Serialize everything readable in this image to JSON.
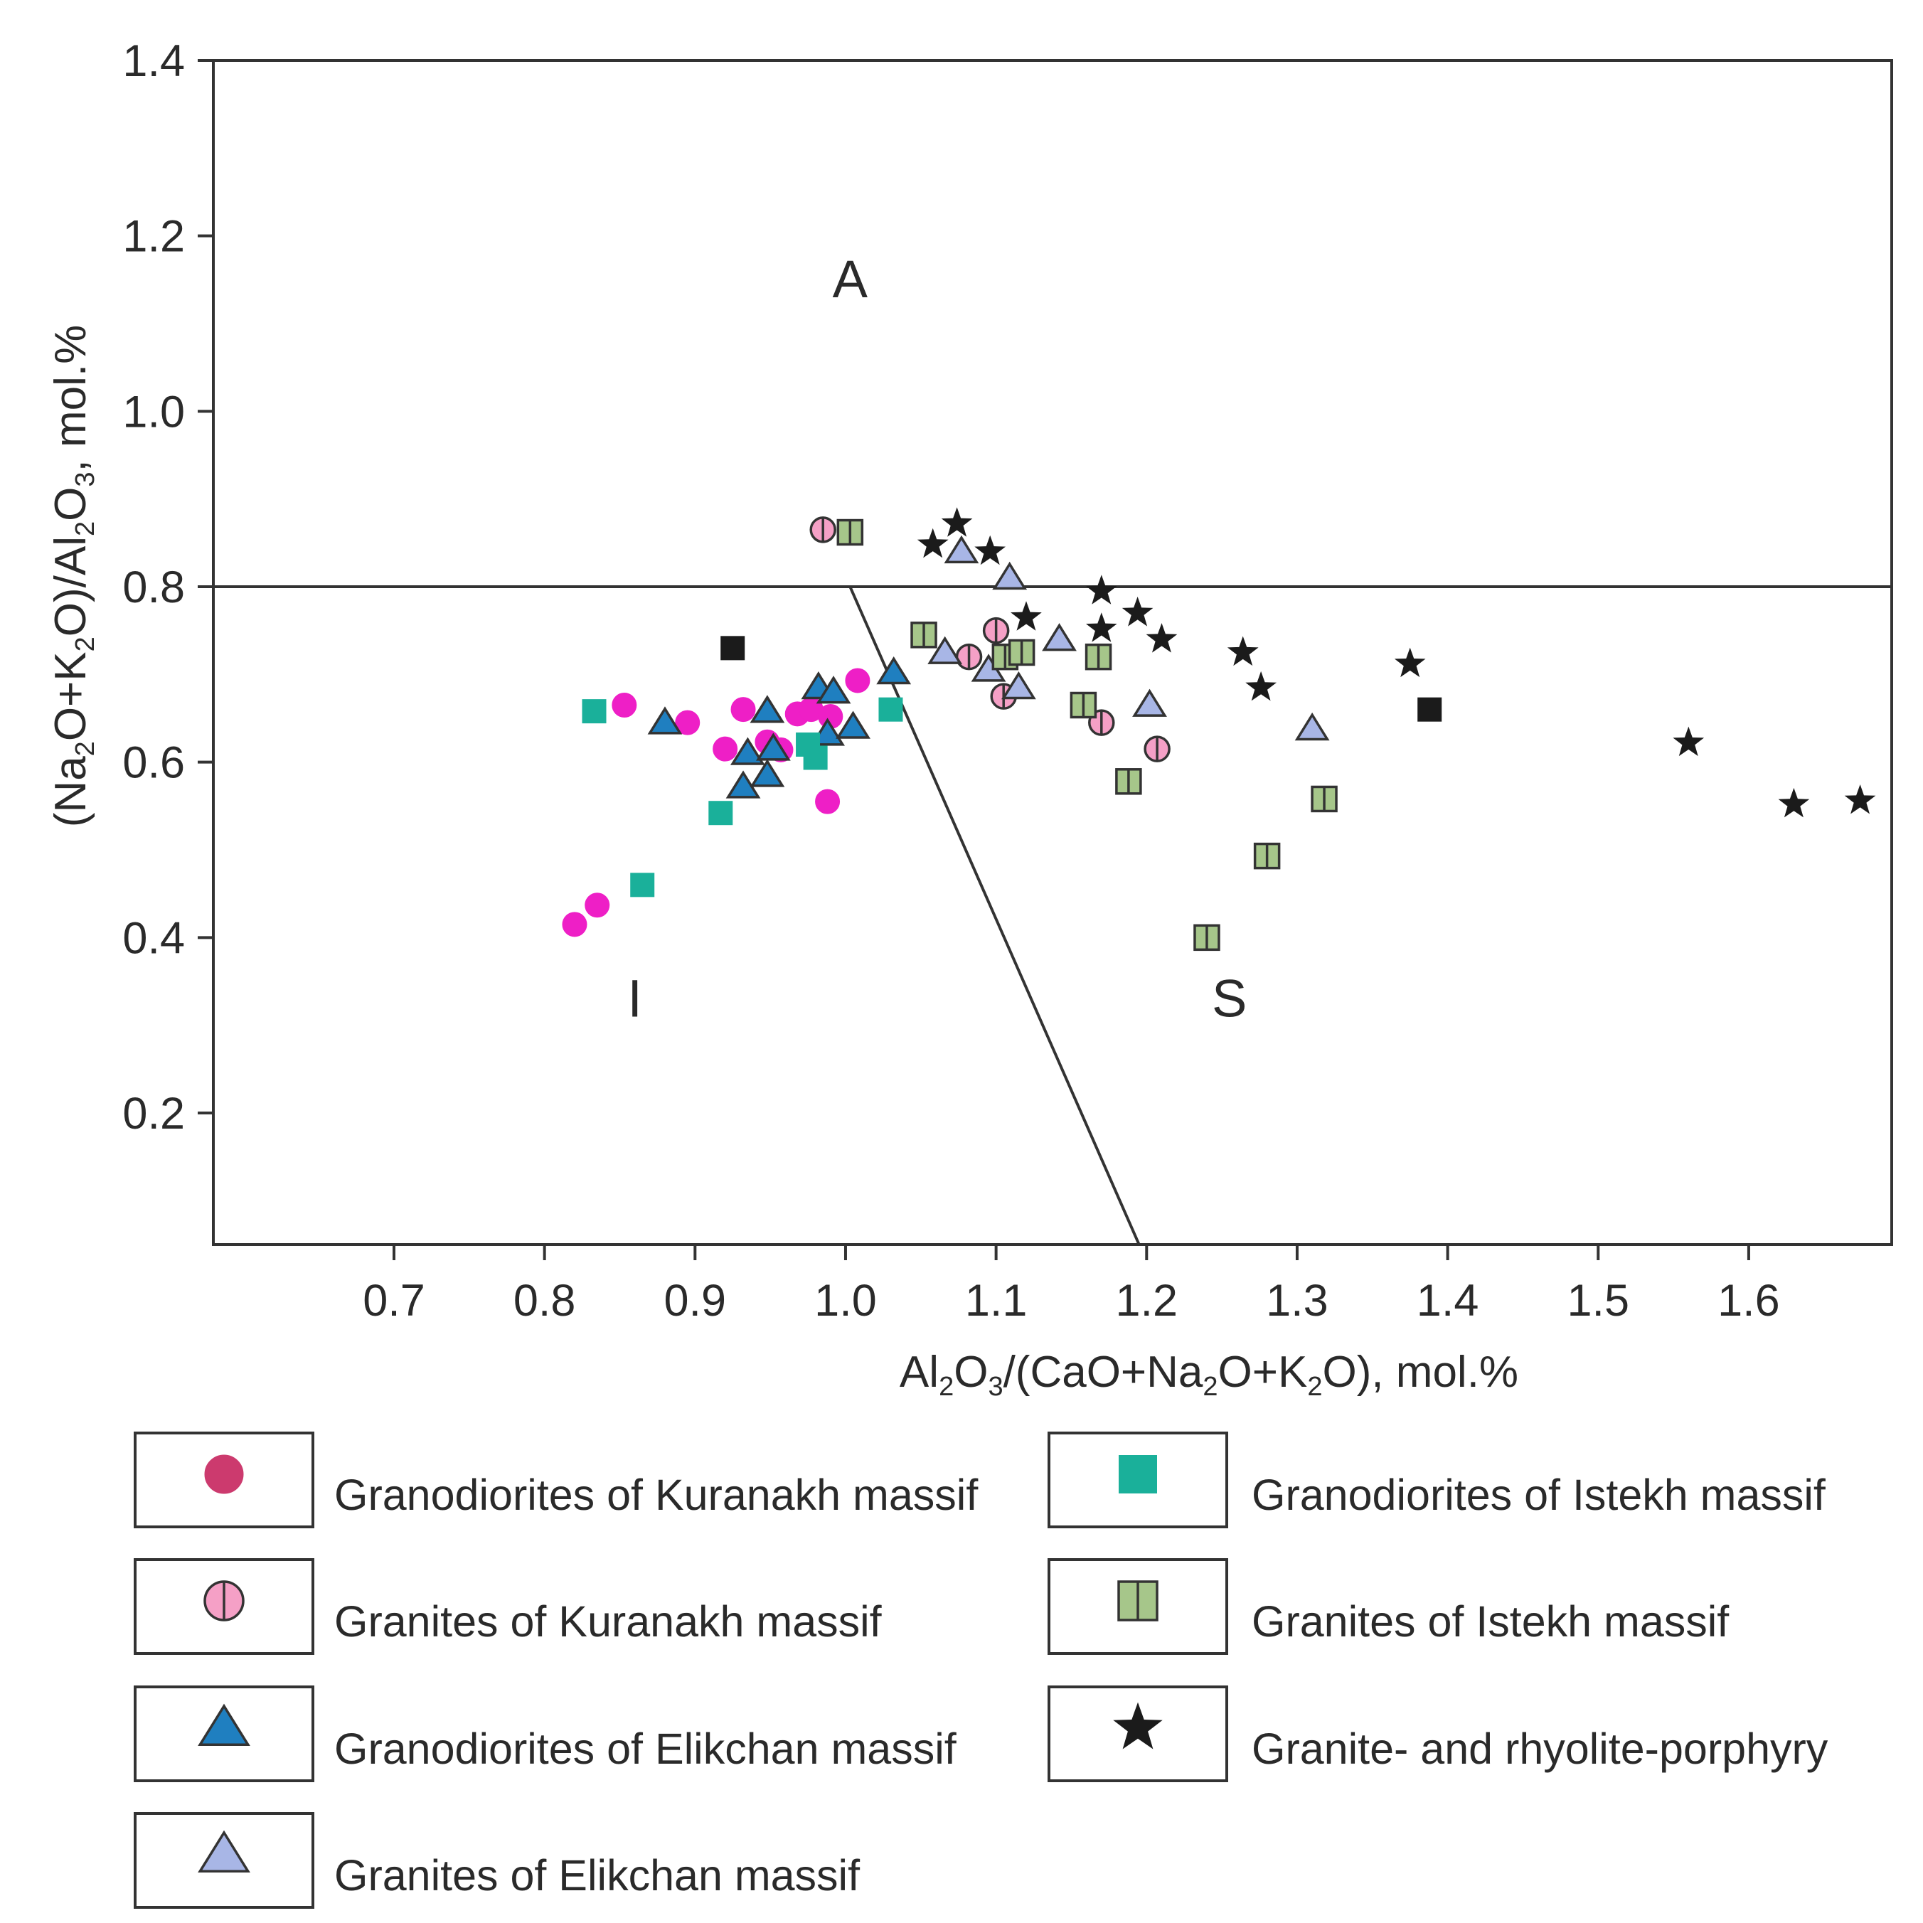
{
  "chart_data": {
    "type": "scatter",
    "xlabel": "Al₂O₃/(CaO+Na₂O+K₂O), mol.%",
    "ylabel": "(Na₂O+K₂O)/Al₂O₃, mol.%",
    "xlim": [
      0.58,
      1.695
    ],
    "ylim": [
      0.05,
      1.4
    ],
    "x_ticks": [
      0.7,
      0.8,
      0.9,
      1.0,
      1.1,
      1.2,
      1.3,
      1.4,
      1.5,
      1.6
    ],
    "x_tick_labels": [
      "0.7",
      "0.8",
      "0.9",
      "1.0",
      "1.1",
      "1.2",
      "1.3",
      "1.4",
      "1.5",
      "1.6"
    ],
    "y_ticks": [
      0.2,
      0.4,
      0.6,
      0.8,
      1.0,
      1.2,
      1.4
    ],
    "y_tick_labels": [
      "0.2",
      "0.4",
      "0.6",
      "0.8",
      "1.0",
      "1.2",
      "1.4"
    ],
    "boundaries": [
      {
        "name": "A-boundary",
        "x": [
          0.58,
          1.695
        ],
        "y": [
          0.8,
          0.8
        ]
      },
      {
        "name": "I-S-boundary",
        "x": [
          1.003,
          1.195
        ],
        "y": [
          0.8,
          0.05
        ]
      }
    ],
    "regions": [
      {
        "label": "A",
        "x": 1.003,
        "y": 1.13
      },
      {
        "label": "I",
        "x": 0.86,
        "y": 0.31
      },
      {
        "label": "S",
        "x": 1.255,
        "y": 0.31
      }
    ],
    "series": [
      {
        "name": "Granodiorites of Kuranakh massif",
        "marker": "circle",
        "fill": "#ee1fc6",
        "legend_fill": "#cc3a6e",
        "points": [
          [
            0.82,
            0.415
          ],
          [
            0.835,
            0.437
          ],
          [
            0.853,
            0.665
          ],
          [
            0.895,
            0.645
          ],
          [
            0.92,
            0.615
          ],
          [
            0.932,
            0.66
          ],
          [
            0.948,
            0.623
          ],
          [
            0.957,
            0.614
          ],
          [
            0.968,
            0.655
          ],
          [
            0.977,
            0.66
          ],
          [
            0.99,
            0.652
          ],
          [
            0.988,
            0.555
          ],
          [
            1.008,
            0.693
          ]
        ]
      },
      {
        "name": "Granites of Kuranakh massif",
        "marker": "circle-split",
        "fill": "#f5a0c6",
        "points": [
          [
            0.985,
            0.865
          ],
          [
            1.082,
            0.72
          ],
          [
            1.1,
            0.75
          ],
          [
            1.105,
            0.675
          ],
          [
            1.17,
            0.645
          ],
          [
            1.207,
            0.615
          ]
        ]
      },
      {
        "name": "Granodiorites of Elikchan massif",
        "marker": "triangle",
        "fill": "#1f7fc0",
        "points": [
          [
            0.88,
            0.645
          ],
          [
            0.932,
            0.572
          ],
          [
            0.935,
            0.61
          ],
          [
            0.948,
            0.658
          ],
          [
            0.948,
            0.585
          ],
          [
            0.952,
            0.615
          ],
          [
            0.982,
            0.685
          ],
          [
            0.992,
            0.68
          ],
          [
            0.988,
            0.632
          ],
          [
            1.005,
            0.64
          ],
          [
            1.032,
            0.702
          ]
        ]
      },
      {
        "name": "Granites of Elikchan massif",
        "marker": "triangle",
        "fill": "#a8b6e6",
        "points": [
          [
            1.077,
            0.84
          ],
          [
            1.109,
            0.81
          ],
          [
            1.066,
            0.725
          ],
          [
            1.095,
            0.705
          ],
          [
            1.115,
            0.685
          ],
          [
            1.142,
            0.74
          ],
          [
            1.202,
            0.665
          ],
          [
            1.31,
            0.638
          ]
        ]
      },
      {
        "name": "Granodiorites of Istekh massif",
        "marker": "square",
        "fill": "#1ab09a",
        "points": [
          [
            0.833,
            0.658
          ],
          [
            0.865,
            0.46
          ],
          [
            0.917,
            0.542
          ],
          [
            0.975,
            0.62
          ],
          [
            0.98,
            0.605
          ],
          [
            1.03,
            0.66
          ]
        ]
      },
      {
        "name": "Granites of Istekh massif",
        "marker": "square-split",
        "fill": "#a6c68a",
        "points": [
          [
            1.003,
            0.862
          ],
          [
            1.052,
            0.745
          ],
          [
            1.106,
            0.72
          ],
          [
            1.117,
            0.725
          ],
          [
            1.158,
            0.665
          ],
          [
            1.168,
            0.72
          ],
          [
            1.188,
            0.578
          ],
          [
            1.24,
            0.4
          ],
          [
            1.28,
            0.493
          ],
          [
            1.318,
            0.558
          ]
        ]
      },
      {
        "name": "Granite- and rhyolite-porphyry",
        "marker": "star",
        "fill": "#1b1b1b",
        "points": [
          [
            1.058,
            0.848
          ],
          [
            1.074,
            0.872
          ],
          [
            1.096,
            0.84
          ],
          [
            1.12,
            0.765
          ],
          [
            1.17,
            0.795
          ],
          [
            1.17,
            0.752
          ],
          [
            1.194,
            0.77
          ],
          [
            1.21,
            0.74
          ],
          [
            1.264,
            0.725
          ],
          [
            1.276,
            0.685
          ],
          [
            1.375,
            0.712
          ],
          [
            1.56,
            0.622
          ],
          [
            1.63,
            0.552
          ],
          [
            1.674,
            0.556
          ]
        ]
      },
      {
        "name": "Unlabeled black squares",
        "marker": "square",
        "fill": "#1b1b1b",
        "legend": false,
        "points": [
          [
            0.925,
            0.73
          ],
          [
            1.388,
            0.66
          ]
        ]
      }
    ],
    "legend": [
      {
        "label": "Granodiorites of Kuranakh massif",
        "marker": "circle",
        "fill": "#cc3a6e"
      },
      {
        "label": "Granites of Kuranakh massif",
        "marker": "circle-split",
        "fill": "#f5a0c6"
      },
      {
        "label": "Granodiorites of Elikchan massif",
        "marker": "triangle",
        "fill": "#1f7fc0"
      },
      {
        "label": "Granites of Elikchan massif",
        "marker": "triangle",
        "fill": "#a8b6e6"
      },
      {
        "label": "Granodiorites of Istekh massif",
        "marker": "square",
        "fill": "#1ab09a"
      },
      {
        "label": "Granites of Istekh massif",
        "marker": "square-split",
        "fill": "#a6c68a"
      },
      {
        "label": "Granite- and rhyolite-porphyry",
        "marker": "star",
        "fill": "#1b1b1b"
      }
    ],
    "legend_placement": "bottom, two columns"
  }
}
